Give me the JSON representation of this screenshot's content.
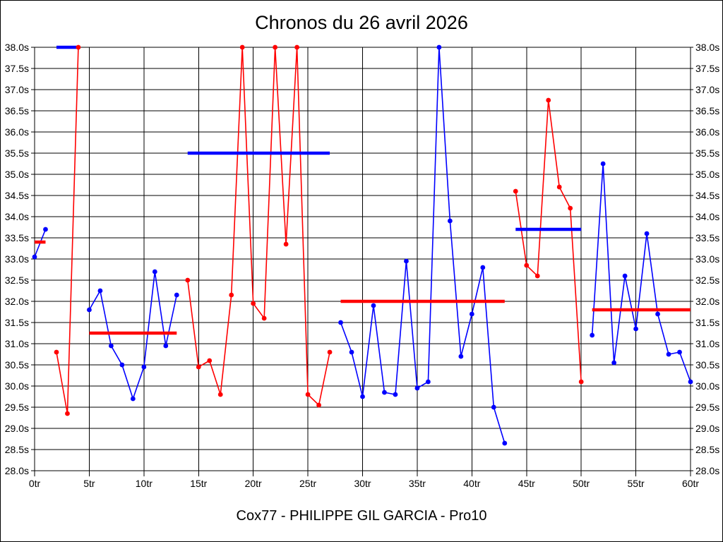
{
  "chart_data": {
    "type": "line",
    "title": "Chronos du 26 avril 2026",
    "subtitle": "Cox77 - PHILIPPE GIL GARCIA - Pro10",
    "x_unit": "tr",
    "y_unit": "s",
    "xlim": [
      0,
      60
    ],
    "ylim": [
      28.0,
      38.0
    ],
    "grid": true,
    "legend_position": "none",
    "x_ticks": [
      0,
      5,
      10,
      15,
      20,
      25,
      30,
      35,
      40,
      45,
      50,
      55,
      60
    ],
    "x_tick_labels": [
      "0tr",
      "5tr",
      "10tr",
      "15tr",
      "20tr",
      "25tr",
      "30tr",
      "35tr",
      "40tr",
      "45tr",
      "50tr",
      "55tr",
      "60tr"
    ],
    "y_ticks": [
      28.0,
      28.5,
      29.0,
      29.5,
      30.0,
      30.5,
      31.0,
      31.5,
      32.0,
      32.5,
      33.0,
      33.5,
      34.0,
      34.5,
      35.0,
      35.5,
      36.0,
      36.5,
      37.0,
      37.5,
      38.0
    ],
    "y_tick_labels": [
      "28.0s",
      "28.5s",
      "29.0s",
      "29.5s",
      "30.0s",
      "30.5s",
      "31.0s",
      "31.5s",
      "32.0s",
      "32.5s",
      "33.0s",
      "33.5s",
      "34.0s",
      "34.5s",
      "35.0s",
      "35.5s",
      "36.0s",
      "36.5s",
      "37.0s",
      "37.5s",
      "38.0s"
    ],
    "colors": {
      "red": "#ff0000",
      "blue": "#0000ff",
      "grid": "#000000",
      "background": "#ffffff",
      "text": "#000000"
    },
    "stints": [
      {
        "name": "stint-1",
        "color": "blue",
        "laps": [
          [
            0,
            33.05
          ],
          [
            1,
            33.7
          ]
        ],
        "avg_line": {
          "value": 33.4,
          "x_from": 0,
          "x_to": 1,
          "color": "red"
        }
      },
      {
        "name": "stint-2",
        "color": "red",
        "laps": [
          [
            2,
            30.8
          ],
          [
            3,
            29.35
          ],
          [
            4,
            38.0
          ]
        ],
        "avg_line": {
          "value": 38.0,
          "x_from": 2,
          "x_to": 4,
          "color": "blue"
        }
      },
      {
        "name": "stint-3",
        "color": "blue",
        "laps": [
          [
            5,
            31.8
          ],
          [
            6,
            32.25
          ],
          [
            7,
            30.95
          ],
          [
            8,
            30.5
          ],
          [
            9,
            29.7
          ],
          [
            10,
            30.45
          ],
          [
            11,
            32.7
          ],
          [
            12,
            30.95
          ],
          [
            13,
            32.15
          ]
        ],
        "avg_line": {
          "value": 31.25,
          "x_from": 5,
          "x_to": 13,
          "color": "red"
        }
      },
      {
        "name": "stint-4",
        "color": "red",
        "laps": [
          [
            14,
            32.5
          ],
          [
            15,
            30.45
          ],
          [
            16,
            30.6
          ],
          [
            17,
            29.8
          ],
          [
            18,
            32.15
          ],
          [
            19,
            38.0
          ],
          [
            20,
            31.95
          ],
          [
            21,
            31.6
          ],
          [
            22,
            38.0
          ],
          [
            23,
            33.35
          ],
          [
            24,
            38.0
          ],
          [
            25,
            29.8
          ],
          [
            26,
            29.55
          ],
          [
            27,
            30.8
          ]
        ],
        "avg_line": {
          "value": 35.5,
          "x_from": 14,
          "x_to": 27,
          "color": "blue"
        }
      },
      {
        "name": "stint-5",
        "color": "blue",
        "laps": [
          [
            28,
            31.5
          ],
          [
            29,
            30.8
          ],
          [
            30,
            29.75
          ],
          [
            31,
            31.9
          ],
          [
            32,
            29.85
          ],
          [
            33,
            29.8
          ],
          [
            34,
            32.95
          ],
          [
            35,
            29.95
          ],
          [
            36,
            30.1
          ],
          [
            37,
            38.0
          ],
          [
            38,
            33.9
          ],
          [
            39,
            30.7
          ],
          [
            40,
            31.7
          ],
          [
            41,
            32.8
          ],
          [
            42,
            29.5
          ],
          [
            43,
            28.65
          ]
        ],
        "avg_line": {
          "value": 32.0,
          "x_from": 28,
          "x_to": 43,
          "color": "red"
        }
      },
      {
        "name": "stint-6",
        "color": "red",
        "laps": [
          [
            44,
            34.6
          ],
          [
            45,
            32.85
          ],
          [
            46,
            32.6
          ],
          [
            47,
            36.75
          ],
          [
            48,
            34.7
          ],
          [
            49,
            34.2
          ],
          [
            50,
            30.1
          ]
        ],
        "avg_line": {
          "value": 33.7,
          "x_from": 44,
          "x_to": 50,
          "color": "blue"
        }
      },
      {
        "name": "stint-7",
        "color": "blue",
        "laps": [
          [
            51,
            31.2
          ],
          [
            52,
            35.25
          ],
          [
            53,
            30.55
          ],
          [
            54,
            32.6
          ],
          [
            55,
            31.35
          ],
          [
            56,
            33.6
          ],
          [
            57,
            31.7
          ],
          [
            58,
            30.75
          ],
          [
            59,
            30.8
          ],
          [
            60,
            30.1
          ]
        ],
        "avg_line": {
          "value": 31.8,
          "x_from": 51,
          "x_to": 60,
          "color": "red"
        }
      }
    ]
  }
}
